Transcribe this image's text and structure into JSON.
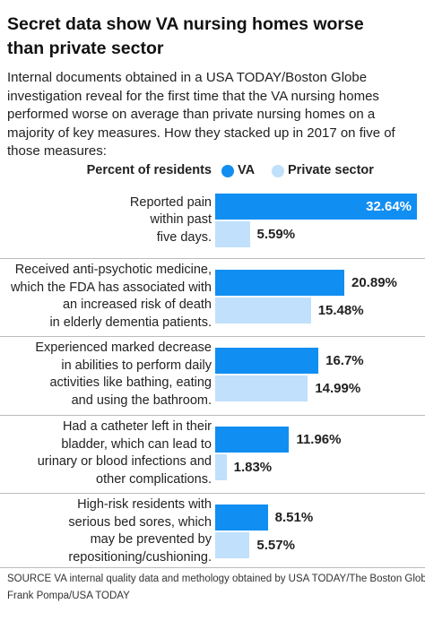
{
  "chart_data": {
    "type": "bar",
    "orientation": "horizontal",
    "title": "Secret data show VA nursing homes worse than private sector",
    "subtitle": "Internal documents obtained in a USA TODAY/Boston Globe investigation reveal for the first time that the VA nursing homes performed worse on average than private nursing homes on a majority of key measures. How they stacked up in 2017 on five of those measures:",
    "legend_title": "Percent of residents",
    "categories": [
      "Reported pain\nwithin past\nfive days.",
      "Received anti-psychotic medicine,\nwhich the FDA has associated with\nan increased risk of death\nin elderly dementia patients.",
      "Experienced marked decrease\nin abilities to perform daily\nactivities like bathing, eating\nand using the bathroom.",
      "Had a catheter left in their\nbladder, which can lead to\nurinary or blood infections and\nother complications.",
      "High-risk residents with\nserious bed sores, which\nmay be prevented by\nrepositioning/cushioning."
    ],
    "series": [
      {
        "name": "VA",
        "color": "#118ef2",
        "values": [
          32.64,
          20.89,
          16.7,
          11.96,
          8.51
        ],
        "value_labels": [
          "32.64%",
          "20.89%",
          "16.7%",
          "11.96%",
          "8.51%"
        ]
      },
      {
        "name": "Private sector",
        "color": "#c0e0fb",
        "values": [
          5.59,
          15.48,
          14.99,
          1.83,
          5.57
        ],
        "value_labels": [
          "5.59%",
          "15.48%",
          "14.99%",
          "1.83%",
          "5.57%"
        ]
      }
    ],
    "source": "SOURCE VA internal quality data and methology obtained by USA TODAY/The Boston Globe",
    "credit": "Frank Pompa/USA TODAY"
  }
}
